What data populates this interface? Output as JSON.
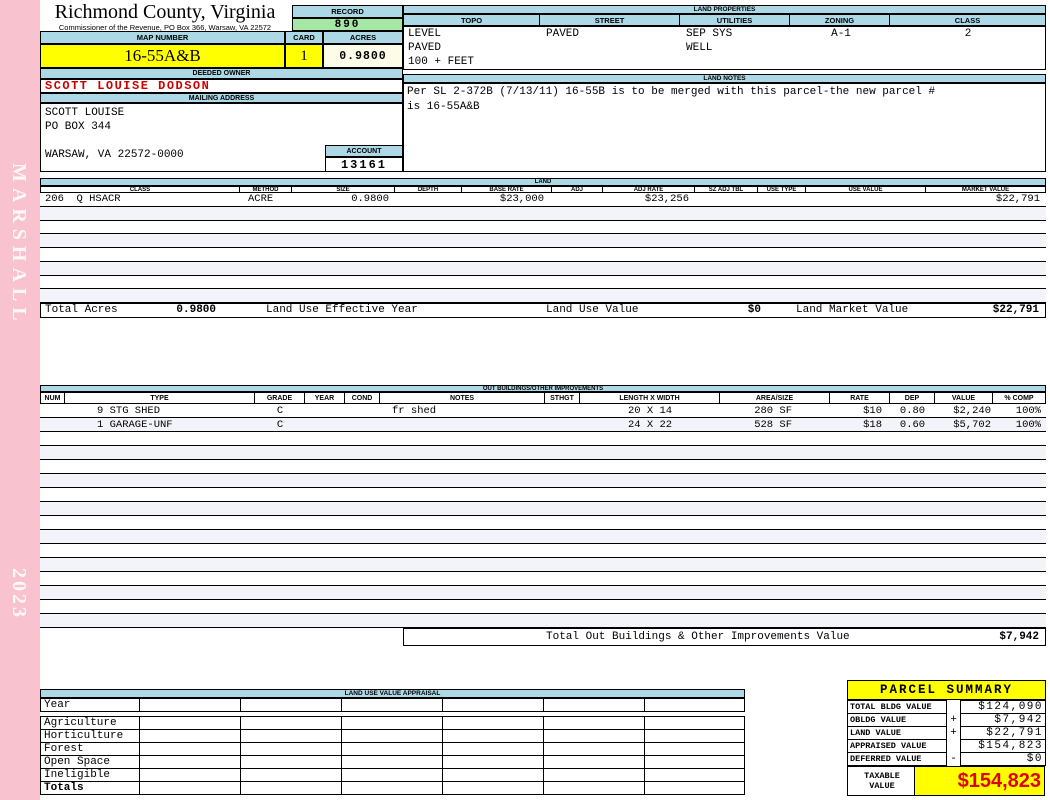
{
  "sidebar": {
    "binder_label": "MARSHALL",
    "year_label": "2023"
  },
  "header": {
    "county": "Richmond County, Virginia",
    "commissioner_line": "Commissioner of the Revenue, PO Box 366, Warsaw, VA 22572",
    "record_label": "RECORD",
    "record_value": "890",
    "map_number_label": "MAP NUMBER",
    "map_number_value": "16-55A&B",
    "card_label": "CARD",
    "card_value": "1",
    "acres_label": "ACRES",
    "acres_value": "0.9800"
  },
  "owner": {
    "deeded_owner_label": "DEEDED OWNER",
    "deeded_owner": "SCOTT LOUISE DODSON",
    "mailing_address_label": "MAILING ADDRESS",
    "address_lines": [
      "SCOTT LOUISE",
      "PO BOX 344",
      "",
      "WARSAW, VA 22572-0000"
    ],
    "account_label": "ACCOUNT",
    "account_value": "13161"
  },
  "land_properties": {
    "title": "LAND PROPERTIES",
    "columns": [
      "TOPO",
      "STREET",
      "UTILITIES",
      "ZONING",
      "CLASS"
    ],
    "topo_lines": [
      "LEVEL",
      "PAVED",
      "100 + FEET"
    ],
    "street_lines": [
      "PAVED"
    ],
    "utilities_lines": [
      "SEP SYS",
      "WELL"
    ],
    "zoning": "A-1",
    "class": "2"
  },
  "land_notes": {
    "title": "LAND NOTES",
    "lines": [
      "Per SL 2-372B (7/13/11) 16-55B is to be merged with this parcel-the new parcel #",
      "is 16-55A&B"
    ]
  },
  "land": {
    "title": "LAND",
    "columns": [
      "CLASS",
      "METHOD",
      "SIZE",
      "DEPTH",
      "BASE RATE",
      "ADJ",
      "ADJ RATE",
      "SZ ADJ TBL",
      "USE TYPE",
      "USE VALUE",
      "MARKET VALUE"
    ],
    "rows": [
      [
        "206  Q HSACR",
        "ACRE",
        "0.9800",
        "",
        "$23,000",
        "",
        "$23,256",
        "",
        "",
        "",
        "$22,791"
      ]
    ],
    "totals": {
      "total_acres_label": "Total Acres",
      "total_acres_value": "0.9800",
      "effective_year_label": "Land Use Effective Year",
      "use_value_label": "Land Use Value",
      "use_value": "$0",
      "market_value_label": "Land Market Value",
      "market_value": "$22,791"
    }
  },
  "out_buildings": {
    "title": "OUT BUILDINGS/OTHER IMPROVEMENTS",
    "columns": [
      "NUM",
      "TYPE",
      "GRADE",
      "YEAR",
      "COND",
      "NOTES",
      "STHGT",
      "LENGTH X WIDTH",
      "AREA/SIZE",
      "RATE",
      "DEP",
      "VALUE",
      "% COMP"
    ],
    "rows": [
      [
        "",
        "9 STG SHED",
        "C",
        "",
        "",
        "fr shed",
        "",
        "20 X 14",
        "280 SF",
        "$10",
        "0.80",
        "$2,240",
        "100%"
      ],
      [
        "",
        "1 GARAGE-UNF",
        "C",
        "",
        "",
        "",
        "",
        "24 X 22",
        "528 SF",
        "$18",
        "0.60",
        "$5,702",
        "100%"
      ]
    ],
    "total_label": "Total Out Buildings & Other Improvements Value",
    "total_value": "$7,942"
  },
  "land_use_appraisal": {
    "title": "LAND USE VALUE APPRAISAL",
    "row_labels": [
      "Year",
      "Agriculture",
      "Horticulture",
      "Forest",
      "Open Space",
      "Ineligible",
      "Totals"
    ]
  },
  "parcel_summary": {
    "title": "PARCEL SUMMARY",
    "rows": [
      {
        "label": "TOTAL BLDG VALUE",
        "op": "",
        "value": "$124,090"
      },
      {
        "label": "OBLDG VALUE",
        "op": "+",
        "value": "$7,942"
      },
      {
        "label": "LAND VALUE",
        "op": "+",
        "value": "$22,791"
      },
      {
        "label": "APPRAISED VALUE",
        "op": "",
        "value": "$154,823"
      },
      {
        "label": "DEFERRED VALUE",
        "op": "-",
        "value": "$0"
      }
    ],
    "taxable_label": "TAXABLE VALUE",
    "taxable_value": "$154,823"
  },
  "colors": {
    "binder_pink": "#F8C3CE",
    "header_blue": "#ADD8E6",
    "record_green": "#A5E8A5",
    "highlight_yellow": "#FFFF00",
    "acres_ivory": "#FCFCE8",
    "owner_red": "#CC0000",
    "taxable_red": "#E00000"
  }
}
